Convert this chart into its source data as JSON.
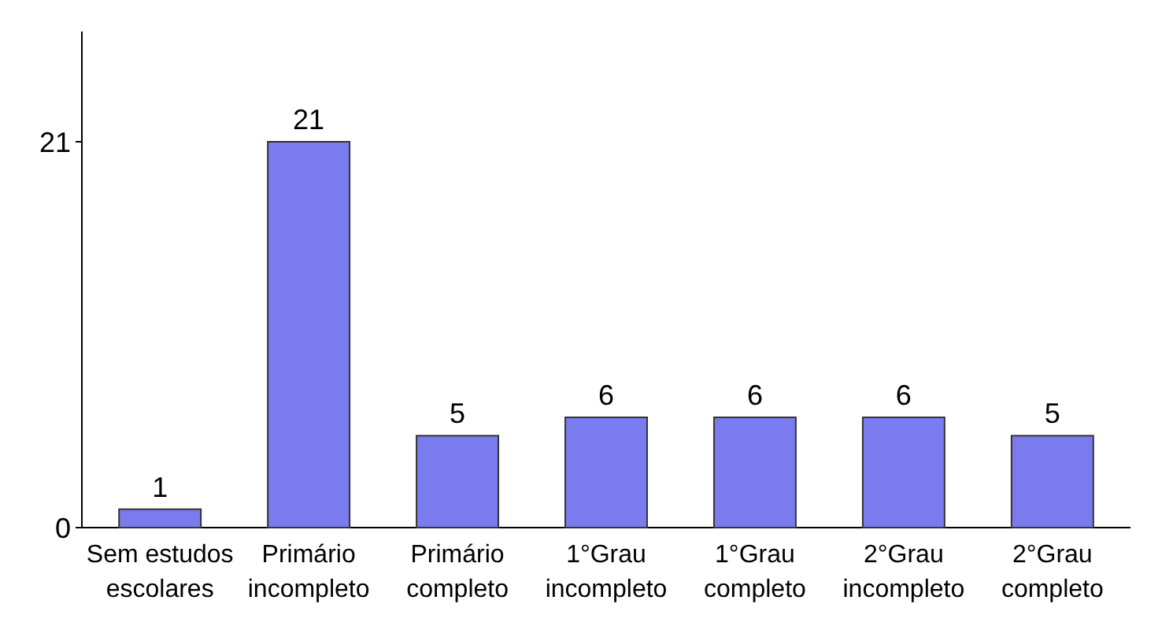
{
  "chart_data": {
    "type": "bar",
    "categories": [
      "Sem estudos escolares",
      "Primário incompleto",
      "Primário completo",
      "1°Grau incompleto",
      "1°Grau completo",
      "2°Grau incompleto",
      "2°Grau completo"
    ],
    "values": [
      1,
      21,
      5,
      6,
      6,
      6,
      5
    ],
    "color": "#7b7bf0",
    "ylim": [
      0,
      27
    ],
    "yticks": [
      0,
      21
    ],
    "data_labels": true,
    "grid": false
  }
}
